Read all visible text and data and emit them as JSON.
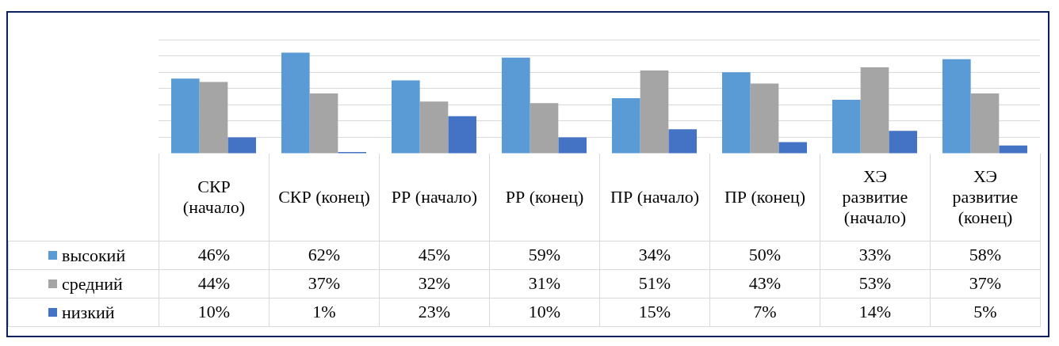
{
  "chart_data": {
    "type": "bar",
    "categories": [
      "СКР (начало)",
      "СКР (конец)",
      "РР (начало)",
      "РР (конец)",
      "ПР (начало)",
      "ПР (конец)",
      "ХЭ развитие (начало)",
      "ХЭ развитие (конец)"
    ],
    "series": [
      {
        "name": "высокий",
        "color": "#5b9bd5",
        "values": [
          46,
          62,
          45,
          59,
          34,
          50,
          33,
          58
        ],
        "value_labels": [
          "46%",
          "62%",
          "45%",
          "59%",
          "34%",
          "50%",
          "33%",
          "58%"
        ]
      },
      {
        "name": "средний",
        "color": "#a5a5a5",
        "values": [
          44,
          37,
          32,
          31,
          51,
          43,
          53,
          37
        ],
        "value_labels": [
          "44%",
          "37%",
          "32%",
          "31%",
          "51%",
          "43%",
          "53%",
          "37%"
        ]
      },
      {
        "name": "низкий",
        "color": "#4472c4",
        "values": [
          10,
          1,
          23,
          10,
          15,
          7,
          14,
          5
        ],
        "value_labels": [
          "10%",
          "1%",
          "23%",
          "10%",
          "15%",
          "7%",
          "14%",
          "5%"
        ]
      }
    ],
    "ylim": [
      0,
      70
    ],
    "grid": "y",
    "legend": "bottom left",
    "tick_labels": "x"
  }
}
